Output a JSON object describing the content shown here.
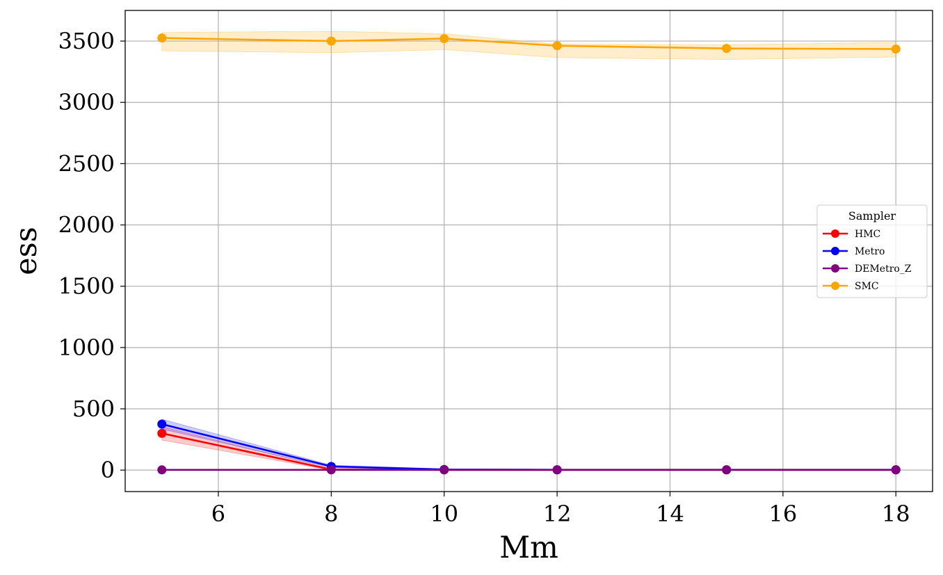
{
  "chart_data": {
    "type": "line",
    "title": "",
    "xlabel": "Mm",
    "ylabel": "ess",
    "xlim": [
      4.35,
      18.65
    ],
    "ylim": [
      -175,
      3750
    ],
    "xticks": [
      6,
      8,
      10,
      12,
      14,
      16,
      18
    ],
    "yticks": [
      0,
      500,
      1000,
      1500,
      2000,
      2500,
      3000,
      3500
    ],
    "grid": true,
    "legend": {
      "title": "Sampler",
      "position": "right"
    },
    "x": [
      5,
      8,
      10,
      12,
      15,
      18
    ],
    "series": [
      {
        "name": "HMC",
        "color": "#ff0000",
        "values": [
          300,
          5,
          2,
          2,
          2,
          2
        ],
        "lower": [
          245,
          0,
          0,
          0,
          0,
          0
        ],
        "upper": [
          355,
          12,
          5,
          5,
          5,
          5
        ]
      },
      {
        "name": "Metro",
        "color": "#0000ff",
        "values": [
          375,
          30,
          5,
          3,
          3,
          3
        ],
        "lower": [
          335,
          20,
          0,
          0,
          0,
          0
        ],
        "upper": [
          415,
          40,
          10,
          6,
          6,
          6
        ]
      },
      {
        "name": "DEMetro_Z",
        "color": "#800080",
        "values": [
          2,
          2,
          2,
          2,
          2,
          2
        ],
        "lower": [
          0,
          0,
          0,
          0,
          0,
          0
        ],
        "upper": [
          4,
          4,
          4,
          4,
          4,
          4
        ]
      },
      {
        "name": "SMC",
        "color": "#ffa500",
        "values": [
          3525,
          3500,
          3520,
          3462,
          3440,
          3435
        ],
        "lower": [
          3420,
          3405,
          3430,
          3365,
          3350,
          3370
        ],
        "upper": [
          3570,
          3580,
          3560,
          3475,
          3470,
          3490
        ]
      }
    ]
  }
}
